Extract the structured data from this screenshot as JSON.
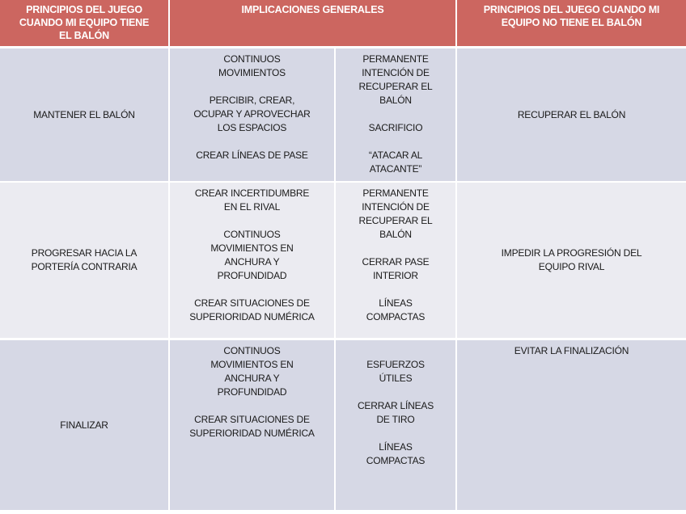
{
  "header": {
    "col1": "PRINCIPIOS DEL JUEGO\nCUANDO MI EQUIPO TIENE\nEL BALÓN",
    "col2": "IMPLICACIONES GENERALES",
    "col3": "PRINCIPIOS DEL JUEGO CUANDO MI\nEQUIPO NO TIENE EL BALÓN"
  },
  "colors": {
    "header": "#cc6660",
    "row_dark": "#d6d8e5",
    "row_light": "#ebebf1"
  },
  "rows": [
    {
      "attack": [
        "MANTENER EL BALÓN"
      ],
      "implications_attack": [
        "CONTINUOS\nMOVIMIENTOS",
        "PERCIBIR, CREAR,\nOCUPAR Y APROVECHAR\nLOS ESPACIOS",
        "CREAR LÍNEAS DE PASE"
      ],
      "implications_defense": [
        "PERMANENTE\nINTENCIÓN DE\nRECUPERAR EL\nBALÓN",
        "SACRIFICIO",
        "“ATACAR AL\nATACANTE”"
      ],
      "defense": [
        "RECUPERAR EL BALÓN"
      ]
    },
    {
      "attack": [
        "PROGRESAR HACIA LA\nPORTERÍA CONTRARIA"
      ],
      "implications_attack": [
        "CREAR INCERTIDUMBRE\nEN EL RIVAL",
        "CONTINUOS\nMOVIMIENTOS EN\nANCHURA Y\nPROFUNDIDAD",
        "CREAR SITUACIONES DE\nSUPERIORIDAD NUMÉRICA"
      ],
      "implications_defense": [
        "PERMANENTE\nINTENCIÓN DE\nRECUPERAR EL\nBALÓN",
        "CERRAR PASE\nINTERIOR",
        "LÍNEAS\nCOMPACTAS"
      ],
      "defense": [
        "IMPEDIR LA PROGRESIÓN DEL\nEQUIPO RIVAL"
      ]
    },
    {
      "attack": [
        "FINALIZAR"
      ],
      "implications_attack": [
        "CONTINUOS\nMOVIMIENTOS EN\nANCHURA Y\nPROFUNDIDAD",
        "CREAR SITUACIONES DE\nSUPERIORIDAD NUMÉRICA"
      ],
      "implications_defense": [
        "ESFUERZOS\nÚTILES",
        "CERRAR LÍNEAS\nDE TIRO",
        "LÍNEAS\nCOMPACTAS"
      ],
      "defense": [
        "EVITAR LA FINALIZACIÓN"
      ]
    }
  ]
}
